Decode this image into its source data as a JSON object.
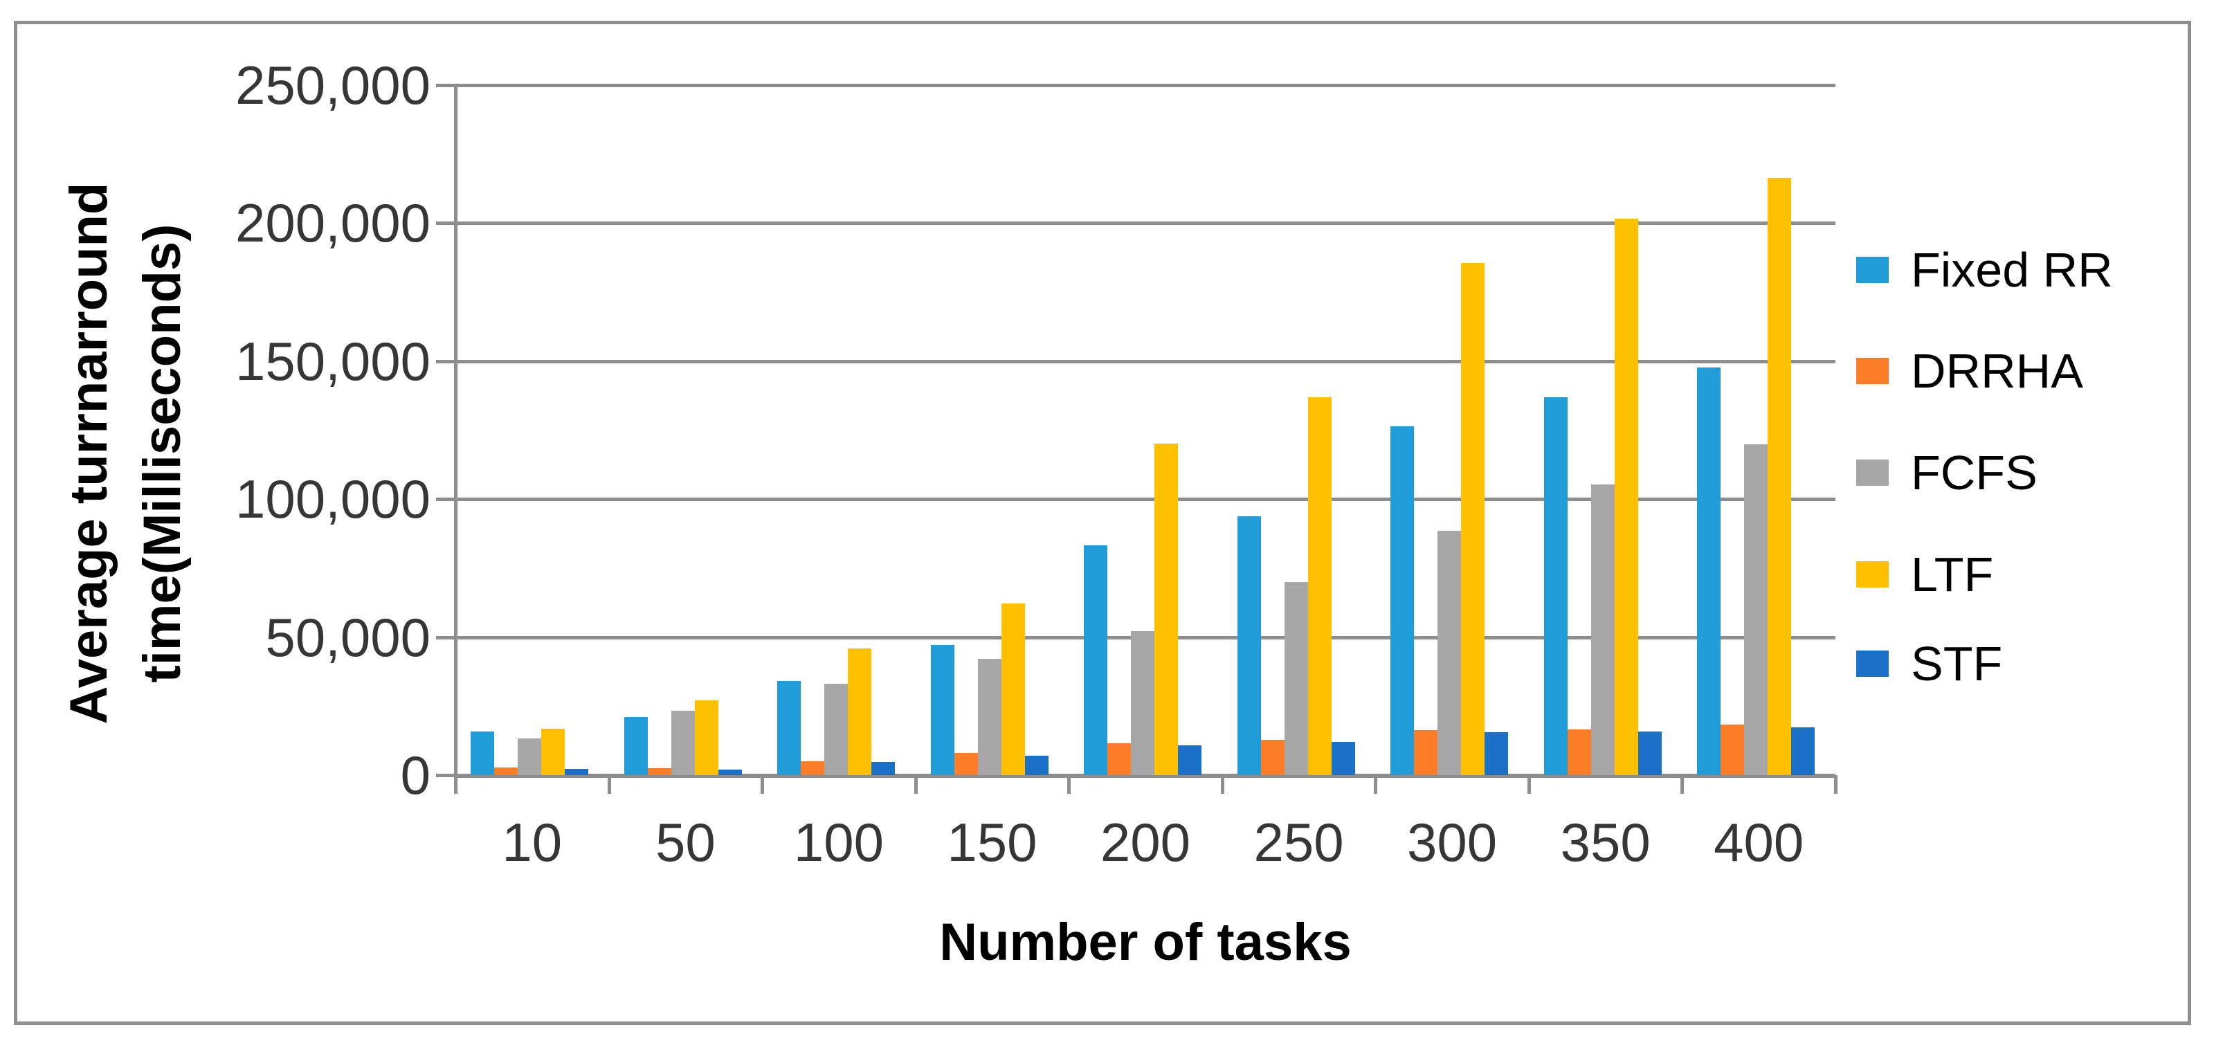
{
  "figure": {
    "background": "#FFFFFF",
    "border_color": "#8F8F8F"
  },
  "chart_data": {
    "type": "bar",
    "title": "",
    "xlabel": "Number of tasks",
    "ylabel": "Average turrnarround time(Milliseconds)",
    "ylabel_line1": "Average turrnarround",
    "ylabel_line2": "time(Milliseconds)",
    "categories": [
      "10",
      "50",
      "100",
      "150",
      "200",
      "250",
      "300",
      "350",
      "400"
    ],
    "series": [
      {
        "name": "Fixed RR",
        "color": "#209DD9",
        "values": [
          15700,
          21000,
          34000,
          47100,
          83300,
          93900,
          126300,
          137000,
          147700
        ]
      },
      {
        "name": "DRRHA",
        "color": "#FC7D28",
        "values": [
          2700,
          2400,
          5000,
          8000,
          11500,
          12800,
          16400,
          16600,
          18300
        ]
      },
      {
        "name": "FCFS",
        "color": "#A6A6A6",
        "values": [
          13400,
          23300,
          33100,
          42200,
          52100,
          69900,
          88500,
          105300,
          119900
        ]
      },
      {
        "name": "LTF",
        "color": "#FFC000",
        "values": [
          16900,
          27100,
          45800,
          62100,
          120200,
          136900,
          185600,
          201700,
          216300
        ]
      },
      {
        "name": "STF",
        "color": "#1B70C7",
        "values": [
          2300,
          1900,
          4700,
          7100,
          10900,
          12100,
          15600,
          15700,
          17400
        ]
      }
    ],
    "ylim": [
      0,
      250000
    ],
    "ytick_step": 50000,
    "ytick_labels": [
      "0",
      "50,000",
      "100,000",
      "150,000",
      "200,000",
      "250,000"
    ],
    "grid": true,
    "legend_position": "right",
    "axis_color": "#8E8E8E",
    "tick_label_color": "#363636"
  }
}
